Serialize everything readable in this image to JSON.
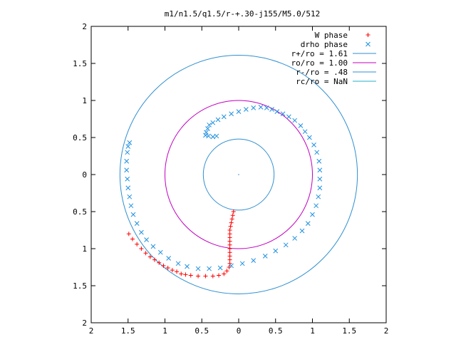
{
  "chart_data": {
    "type": "scatter",
    "title": "m1/n1.5/q1.5/r-+.30-j155/M5.0/512",
    "xlim": [
      -2,
      2
    ],
    "ylim": [
      -2,
      2
    ],
    "x_ticks": [
      "2",
      "1.5",
      "1",
      "0.5",
      "0",
      "0.5",
      "1",
      "1.5",
      "2"
    ],
    "y_ticks": [
      "2",
      "1.5",
      "1",
      "0.5",
      "0",
      "0.5",
      "1",
      "1.5",
      "2"
    ],
    "x_tick_values": [
      -2,
      -1.5,
      -1,
      -0.5,
      0,
      0.5,
      1,
      1.5,
      2
    ],
    "y_tick_values": [
      2,
      1.5,
      1,
      0.5,
      0,
      -0.5,
      -1,
      -1.5,
      -2
    ],
    "grid": false,
    "legend_position": "top-right",
    "legend": [
      {
        "label": "W phase",
        "marker": "+",
        "color": "#ff0000"
      },
      {
        "label": "drho phase",
        "marker": "x",
        "color": "#1e90e0"
      },
      {
        "label": "r+/ro = 1.61",
        "marker": "line",
        "color": "#2f8fd0"
      },
      {
        "label": "ro/ro = 1.00",
        "marker": "line",
        "color": "#c000c0"
      },
      {
        "label": "r-/ro = .48",
        "marker": "line",
        "color": "#2f8fd0"
      },
      {
        "label": "rc/ro = NaN",
        "marker": "line",
        "color": "#22b0c8"
      }
    ],
    "circles": [
      {
        "name": "r+/ro = 1.61",
        "radius": 1.61,
        "color": "#2f8fd0"
      },
      {
        "name": "ro/ro = 1.00",
        "radius": 1.0,
        "color": "#c000c0"
      },
      {
        "name": "r-/ro = .48",
        "radius": 0.48,
        "color": "#2f8fd0"
      }
    ],
    "series": [
      {
        "name": "W phase",
        "color": "#ff0000",
        "marker": "+",
        "points": [
          [
            -0.07,
            -0.5
          ],
          [
            -0.08,
            -0.55
          ],
          [
            -0.09,
            -0.6
          ],
          [
            -0.1,
            -0.65
          ],
          [
            -0.11,
            -0.7
          ],
          [
            -0.12,
            -0.75
          ],
          [
            -0.12,
            -0.8
          ],
          [
            -0.12,
            -0.85
          ],
          [
            -0.12,
            -0.9
          ],
          [
            -0.12,
            -0.95
          ],
          [
            -0.12,
            -1.0
          ],
          [
            -0.12,
            -1.05
          ],
          [
            -0.12,
            -1.1
          ],
          [
            -0.12,
            -1.15
          ],
          [
            -0.12,
            -1.2
          ],
          [
            -0.13,
            -1.25
          ],
          [
            -0.16,
            -1.3
          ],
          [
            -0.2,
            -1.34
          ],
          [
            -0.27,
            -1.36
          ],
          [
            -0.35,
            -1.37
          ],
          [
            -0.45,
            -1.37
          ],
          [
            -0.55,
            -1.37
          ],
          [
            -0.65,
            -1.36
          ],
          [
            -0.72,
            -1.35
          ],
          [
            -0.78,
            -1.34
          ],
          [
            -0.84,
            -1.31
          ],
          [
            -0.9,
            -1.29
          ],
          [
            -0.96,
            -1.26
          ],
          [
            -1.02,
            -1.23
          ],
          [
            -1.08,
            -1.19
          ],
          [
            -1.14,
            -1.15
          ],
          [
            -1.2,
            -1.11
          ],
          [
            -1.26,
            -1.06
          ],
          [
            -1.32,
            -1.0
          ],
          [
            -1.38,
            -0.94
          ],
          [
            -1.44,
            -0.87
          ],
          [
            -1.49,
            -0.8
          ]
        ]
      },
      {
        "name": "drho phase",
        "color": "#1e90e0",
        "marker": "x",
        "points": [
          [
            -0.41,
            0.52
          ],
          [
            -0.35,
            0.51
          ],
          [
            -0.3,
            0.52
          ],
          [
            -0.45,
            0.53
          ],
          [
            -0.44,
            0.57
          ],
          [
            -0.42,
            0.62
          ],
          [
            -0.4,
            0.67
          ],
          [
            -0.35,
            0.7
          ],
          [
            -0.28,
            0.74
          ],
          [
            -0.2,
            0.78
          ],
          [
            -0.1,
            0.82
          ],
          [
            0.0,
            0.85
          ],
          [
            0.1,
            0.88
          ],
          [
            0.2,
            0.9
          ],
          [
            0.3,
            0.91
          ],
          [
            0.38,
            0.9
          ],
          [
            0.45,
            0.88
          ],
          [
            0.52,
            0.85
          ],
          [
            0.6,
            0.82
          ],
          [
            0.68,
            0.78
          ],
          [
            0.76,
            0.73
          ],
          [
            0.84,
            0.66
          ],
          [
            0.9,
            0.58
          ],
          [
            0.96,
            0.5
          ],
          [
            1.02,
            0.4
          ],
          [
            1.06,
            0.3
          ],
          [
            1.09,
            0.18
          ],
          [
            1.1,
            0.06
          ],
          [
            1.1,
            -0.06
          ],
          [
            1.1,
            -0.18
          ],
          [
            1.08,
            -0.3
          ],
          [
            1.05,
            -0.42
          ],
          [
            1.0,
            -0.54
          ],
          [
            0.94,
            -0.66
          ],
          [
            0.86,
            -0.76
          ],
          [
            0.76,
            -0.86
          ],
          [
            0.64,
            -0.95
          ],
          [
            0.5,
            -1.03
          ],
          [
            0.36,
            -1.1
          ],
          [
            0.2,
            -1.16
          ],
          [
            0.05,
            -1.2
          ],
          [
            -0.1,
            -1.23
          ],
          [
            -0.25,
            -1.26
          ],
          [
            -0.4,
            -1.27
          ],
          [
            -0.55,
            -1.27
          ],
          [
            -0.7,
            -1.24
          ],
          [
            -0.82,
            -1.2
          ],
          [
            -0.95,
            -1.13
          ],
          [
            -1.06,
            -1.05
          ],
          [
            -1.16,
            -0.97
          ],
          [
            -1.25,
            -0.88
          ],
          [
            -1.32,
            -0.78
          ],
          [
            -1.38,
            -0.66
          ],
          [
            -1.43,
            -0.54
          ],
          [
            -1.46,
            -0.42
          ],
          [
            -1.48,
            -0.3
          ],
          [
            -1.5,
            -0.18
          ],
          [
            -1.51,
            -0.06
          ],
          [
            -1.52,
            0.06
          ],
          [
            -1.52,
            0.18
          ],
          [
            -1.51,
            0.3
          ],
          [
            -1.5,
            0.38
          ],
          [
            -1.48,
            0.43
          ]
        ]
      }
    ]
  }
}
